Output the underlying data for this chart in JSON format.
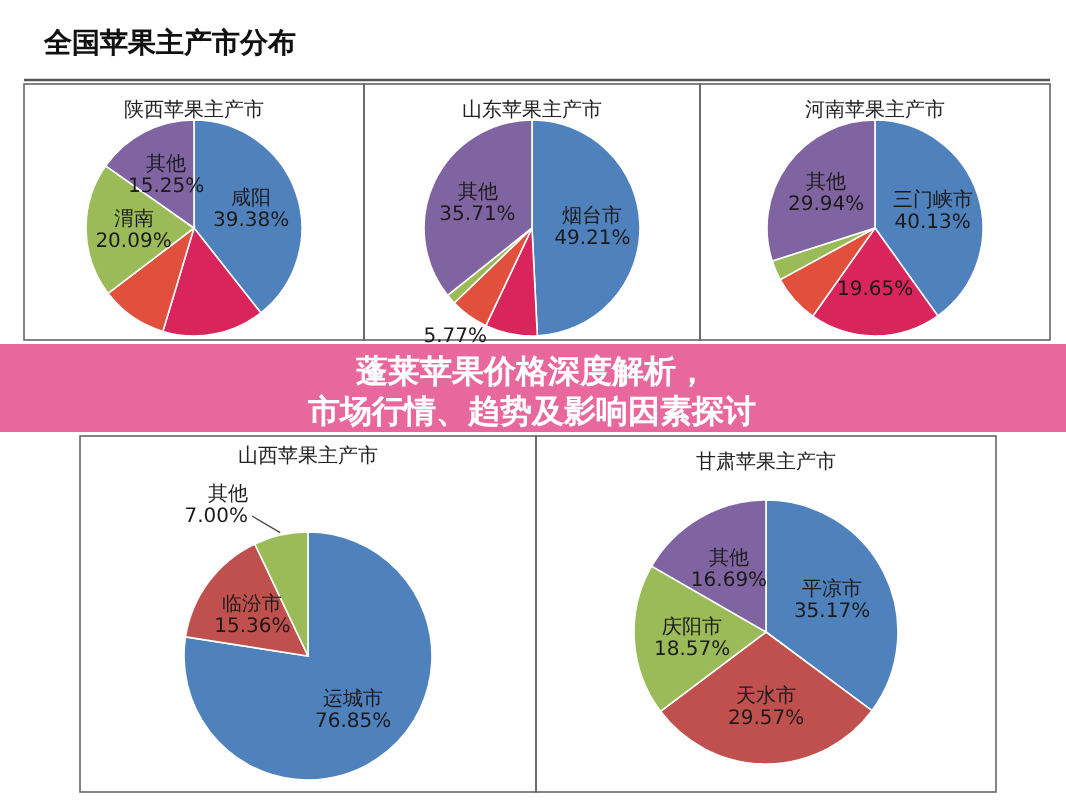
{
  "chart_data": [
    {
      "type": "other",
      "title": "全国苹果主产市分布",
      "annotations": [
        "蓬莱苹果价格深度解析，市场行情、趋势及影响因素探讨"
      ]
    },
    {
      "type": "pie",
      "title": "陕西苹果主产市",
      "categories": [
        "咸阳",
        null,
        null,
        "渭南",
        "其他"
      ],
      "values": [
        39.38,
        15.28,
        10.0,
        20.09,
        15.25
      ],
      "value_labels": [
        "39.38%",
        null,
        null,
        "20.09%",
        "15.25%"
      ],
      "colors": [
        "#4f81bd",
        "#d9245c",
        "#e0503c",
        "#9bbb59",
        "#8064a2"
      ]
    },
    {
      "type": "pie",
      "title": "山东苹果主产市",
      "categories": [
        "烟台市",
        null,
        null,
        null,
        "其他"
      ],
      "values": [
        49.21,
        7.81,
        5.77,
        1.5,
        35.71
      ],
      "value_labels": [
        "49.21%",
        null,
        "5.77%",
        null,
        "35.71%"
      ],
      "colors": [
        "#4f81bd",
        "#d9245c",
        "#e0503c",
        "#9bbb59",
        "#8064a2"
      ]
    },
    {
      "type": "pie",
      "title": "河南苹果主产市",
      "categories": [
        "三门峡市",
        null,
        null,
        null,
        "其他"
      ],
      "values": [
        40.13,
        19.65,
        7.28,
        3.0,
        29.94
      ],
      "value_labels": [
        "40.13%",
        "19.65%",
        null,
        null,
        "29.94%"
      ],
      "colors": [
        "#4f81bd",
        "#d9245c",
        "#e0503c",
        "#9bbb59",
        "#8064a2"
      ]
    },
    {
      "type": "pie",
      "title": "山西苹果主产市",
      "categories": [
        "运城市",
        "临汾市",
        "其他"
      ],
      "values": [
        76.85,
        15.36,
        7.0
      ],
      "value_labels": [
        "76.85%",
        "15.36%",
        "7.00%"
      ],
      "colors": [
        "#4f81bd",
        "#c0504d",
        "#9bbb59"
      ]
    },
    {
      "type": "pie",
      "title": "甘肃苹果主产市",
      "categories": [
        "平凉市",
        "天水市",
        "庆阳市",
        "其他"
      ],
      "values": [
        35.17,
        29.57,
        18.57,
        16.69
      ],
      "value_labels": [
        "35.17%",
        "29.57%",
        "18.57%",
        "16.69%"
      ],
      "colors": [
        "#4f81bd",
        "#c0504d",
        "#9bbb59",
        "#8064a2"
      ]
    }
  ]
}
